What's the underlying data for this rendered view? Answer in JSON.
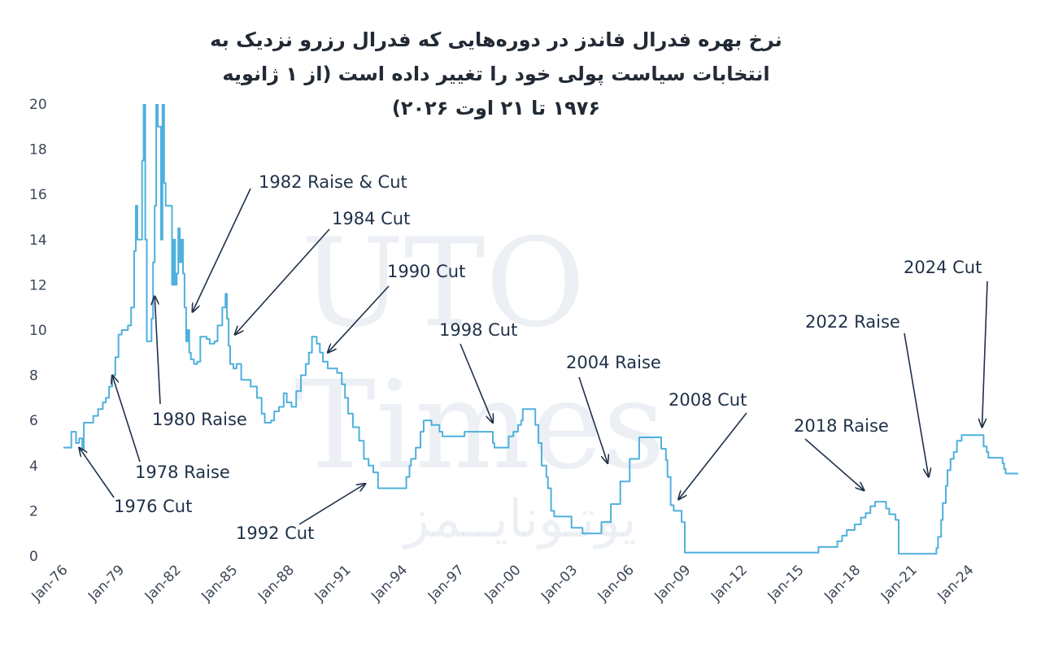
{
  "chart_data": {
    "type": "line",
    "title_lines": [
      "نرخ بهره فدرال فاندز در دوره‌هایی که فدرال رزرو نزدیک به",
      "انتخابات سیاست پولی خود را تغییر داده است (از ۱ ژانویه",
      "۱۹۷۶ تا ۲۱ اوت ۲۰۲۶)"
    ],
    "xlabel": "",
    "ylabel": "",
    "ylim": [
      0,
      20
    ],
    "xlim": [
      "1976-01",
      "2026-08"
    ],
    "grid": false,
    "line_color": "#4fb0dd",
    "text_color": "#1f3148",
    "y_ticks": [
      "0",
      "2",
      "4",
      "6",
      "8",
      "10",
      "12",
      "14",
      "16",
      "18",
      "20"
    ],
    "x_ticks": [
      {
        "label": "Jan-76",
        "x": "1976-01"
      },
      {
        "label": "Jan-79",
        "x": "1979-01"
      },
      {
        "label": "Jan-82",
        "x": "1982-01"
      },
      {
        "label": "Jan-85",
        "x": "1985-01"
      },
      {
        "label": "Jan-88",
        "x": "1988-01"
      },
      {
        "label": "Jan-91",
        "x": "1991-01"
      },
      {
        "label": "Jan-94",
        "x": "1994-01"
      },
      {
        "label": "Jan-97",
        "x": "1997-01"
      },
      {
        "label": "Jan-00",
        "x": "2000-01"
      },
      {
        "label": "Jan-03",
        "x": "2003-01"
      },
      {
        "label": "Jan-06",
        "x": "2006-01"
      },
      {
        "label": "Jan-09",
        "x": "2009-01"
      },
      {
        "label": "Jan-12",
        "x": "2012-01"
      },
      {
        "label": "Jan-15",
        "x": "2015-01"
      },
      {
        "label": "Jan-18",
        "x": "2018-01"
      },
      {
        "label": "Jan-21",
        "x": "2021-01"
      },
      {
        "label": "Jan-24",
        "x": "2024-01"
      }
    ],
    "series": [
      {
        "points": [
          [
            "1976-01",
            4.8
          ],
          [
            "1976-05",
            4.8
          ],
          [
            "1976-06",
            5.5
          ],
          [
            "1976-08",
            5.5
          ],
          [
            "1976-09",
            5.0
          ],
          [
            "1976-11",
            5.2
          ],
          [
            "1977-01",
            4.7
          ],
          [
            "1977-02",
            5.9
          ],
          [
            "1977-06",
            5.9
          ],
          [
            "1977-08",
            6.2
          ],
          [
            "1977-11",
            6.5
          ],
          [
            "1978-02",
            6.8
          ],
          [
            "1978-04",
            7.0
          ],
          [
            "1978-06",
            7.5
          ],
          [
            "1978-08",
            8.0
          ],
          [
            "1978-10",
            8.8
          ],
          [
            "1978-12",
            9.8
          ],
          [
            "1979-02",
            10.0
          ],
          [
            "1979-06",
            10.2
          ],
          [
            "1979-08",
            11.0
          ],
          [
            "1979-10",
            13.5
          ],
          [
            "1979-11",
            15.5
          ],
          [
            "1979-12",
            14.0
          ],
          [
            "1980-01",
            14.0
          ],
          [
            "1980-03",
            17.5
          ],
          [
            "1980-04",
            20.0
          ],
          [
            "1980-05",
            14.0
          ],
          [
            "1980-06",
            9.5
          ],
          [
            "1980-07",
            9.5
          ],
          [
            "1980-09",
            10.5
          ],
          [
            "1980-10",
            13.0
          ],
          [
            "1980-11",
            15.5
          ],
          [
            "1980-12",
            20.0
          ],
          [
            "1981-01",
            19.0
          ],
          [
            "1981-03",
            14.0
          ],
          [
            "1981-04",
            20.0
          ],
          [
            "1981-05",
            16.5
          ],
          [
            "1981-06",
            15.5
          ],
          [
            "1981-09",
            15.5
          ],
          [
            "1981-10",
            12.0
          ],
          [
            "1981-11",
            14.0
          ],
          [
            "1981-12",
            12.0
          ],
          [
            "1982-01",
            12.5
          ],
          [
            "1982-02",
            14.5
          ],
          [
            "1982-03",
            13.0
          ],
          [
            "1982-04",
            14.0
          ],
          [
            "1982-05",
            12.5
          ],
          [
            "1982-06",
            11.0
          ],
          [
            "1982-07",
            9.5
          ],
          [
            "1982-08",
            10.0
          ],
          [
            "1982-09",
            9.0
          ],
          [
            "1982-10",
            8.7
          ],
          [
            "1982-12",
            8.5
          ],
          [
            "1983-02",
            8.6
          ],
          [
            "1983-04",
            9.7
          ],
          [
            "1983-08",
            9.6
          ],
          [
            "1983-10",
            9.4
          ],
          [
            "1984-01",
            9.5
          ],
          [
            "1984-03",
            10.2
          ],
          [
            "1984-06",
            11.0
          ],
          [
            "1984-08",
            11.6
          ],
          [
            "1984-09",
            10.5
          ],
          [
            "1984-10",
            9.3
          ],
          [
            "1984-11",
            8.5
          ],
          [
            "1985-01",
            8.3
          ],
          [
            "1985-03",
            8.5
          ],
          [
            "1985-06",
            7.8
          ],
          [
            "1985-10",
            7.8
          ],
          [
            "1985-12",
            7.5
          ],
          [
            "1986-04",
            7.0
          ],
          [
            "1986-07",
            6.3
          ],
          [
            "1986-09",
            5.9
          ],
          [
            "1987-01",
            6.0
          ],
          [
            "1987-03",
            6.4
          ],
          [
            "1987-06",
            6.6
          ],
          [
            "1987-09",
            7.2
          ],
          [
            "1987-11",
            6.8
          ],
          [
            "1988-02",
            6.6
          ],
          [
            "1988-05",
            7.3
          ],
          [
            "1988-08",
            8.0
          ],
          [
            "1988-11",
            8.5
          ],
          [
            "1989-01",
            9.0
          ],
          [
            "1989-03",
            9.7
          ],
          [
            "1989-06",
            9.4
          ],
          [
            "1989-08",
            9.0
          ],
          [
            "1989-10",
            8.6
          ],
          [
            "1990-01",
            8.3
          ],
          [
            "1990-07",
            8.1
          ],
          [
            "1990-10",
            7.6
          ],
          [
            "1990-12",
            7.0
          ],
          [
            "1991-02",
            6.3
          ],
          [
            "1991-05",
            5.7
          ],
          [
            "1991-09",
            5.1
          ],
          [
            "1991-12",
            4.3
          ],
          [
            "1992-03",
            4.0
          ],
          [
            "1992-06",
            3.7
          ],
          [
            "1992-09",
            3.0
          ],
          [
            "1994-02",
            3.0
          ],
          [
            "1994-03",
            3.5
          ],
          [
            "1994-05",
            4.0
          ],
          [
            "1994-06",
            4.3
          ],
          [
            "1994-09",
            4.8
          ],
          [
            "1994-12",
            5.5
          ],
          [
            "1995-02",
            6.0
          ],
          [
            "1995-07",
            5.8
          ],
          [
            "1995-12",
            5.5
          ],
          [
            "1996-02",
            5.3
          ],
          [
            "1997-03",
            5.3
          ],
          [
            "1997-04",
            5.5
          ],
          [
            "1998-09",
            5.5
          ],
          [
            "1998-10",
            5.0
          ],
          [
            "1998-11",
            4.8
          ],
          [
            "1999-06",
            4.8
          ],
          [
            "1999-08",
            5.3
          ],
          [
            "1999-11",
            5.5
          ],
          [
            "2000-02",
            5.8
          ],
          [
            "2000-04",
            6.0
          ],
          [
            "2000-05",
            6.5
          ],
          [
            "2000-12",
            6.5
          ],
          [
            "2001-01",
            5.8
          ],
          [
            "2001-03",
            5.0
          ],
          [
            "2001-05",
            4.0
          ],
          [
            "2001-08",
            3.5
          ],
          [
            "2001-09",
            3.0
          ],
          [
            "2001-11",
            2.0
          ],
          [
            "2002-01",
            1.75
          ],
          [
            "2002-11",
            1.75
          ],
          [
            "2002-12",
            1.25
          ],
          [
            "2003-06",
            1.25
          ],
          [
            "2003-07",
            1.0
          ],
          [
            "2004-06",
            1.0
          ],
          [
            "2004-07",
            1.5
          ],
          [
            "2005-01",
            2.3
          ],
          [
            "2005-07",
            3.3
          ],
          [
            "2006-01",
            4.3
          ],
          [
            "2006-07",
            5.25
          ],
          [
            "2007-08",
            5.25
          ],
          [
            "2007-09",
            4.75
          ],
          [
            "2007-12",
            4.25
          ],
          [
            "2008-01",
            3.5
          ],
          [
            "2008-03",
            2.25
          ],
          [
            "2008-05",
            2.0
          ],
          [
            "2008-10",
            1.5
          ],
          [
            "2008-12",
            0.15
          ],
          [
            "2015-12",
            0.15
          ],
          [
            "2016-01",
            0.4
          ],
          [
            "2016-12",
            0.4
          ],
          [
            "2017-01",
            0.65
          ],
          [
            "2017-04",
            0.9
          ],
          [
            "2017-07",
            1.15
          ],
          [
            "2017-12",
            1.4
          ],
          [
            "2018-04",
            1.7
          ],
          [
            "2018-07",
            1.9
          ],
          [
            "2018-10",
            2.2
          ],
          [
            "2019-01",
            2.4
          ],
          [
            "2019-07",
            2.4
          ],
          [
            "2019-08",
            2.1
          ],
          [
            "2019-10",
            1.85
          ],
          [
            "2020-02",
            1.6
          ],
          [
            "2020-04",
            0.1
          ],
          [
            "2022-03",
            0.1
          ],
          [
            "2022-04",
            0.35
          ],
          [
            "2022-05",
            0.85
          ],
          [
            "2022-07",
            1.6
          ],
          [
            "2022-08",
            2.35
          ],
          [
            "2022-10",
            3.1
          ],
          [
            "2022-11",
            3.8
          ],
          [
            "2023-01",
            4.3
          ],
          [
            "2023-03",
            4.6
          ],
          [
            "2023-05",
            5.1
          ],
          [
            "2023-08",
            5.35
          ],
          [
            "2024-09",
            5.35
          ],
          [
            "2024-10",
            4.85
          ],
          [
            "2024-12",
            4.6
          ],
          [
            "2025-01",
            4.35
          ],
          [
            "2025-09",
            4.35
          ],
          [
            "2025-10",
            4.1
          ],
          [
            "2025-11",
            3.85
          ],
          [
            "2025-12",
            3.65
          ],
          [
            "2026-08",
            3.65
          ]
        ]
      }
    ],
    "annotations": [
      {
        "text": "1976 Cut",
        "target": [
          "1976-11",
          4.8
        ]
      },
      {
        "text": "1978 Raise",
        "target": [
          "1978-08",
          8.0
        ]
      },
      {
        "text": "1980 Raise",
        "target": [
          "1980-11",
          11.5
        ]
      },
      {
        "text": "1982 Raise & Cut",
        "target": [
          "1982-11",
          10.8
        ]
      },
      {
        "text": "1984 Cut",
        "target": [
          "1985-02",
          9.8
        ]
      },
      {
        "text": "1990 Cut",
        "target": [
          "1990-01",
          9.0
        ]
      },
      {
        "text": "1992 Cut",
        "target": [
          "1992-01",
          3.2
        ]
      },
      {
        "text": "1998 Cut",
        "target": [
          "1998-10",
          5.9
        ]
      },
      {
        "text": "2004 Raise",
        "target": [
          "2004-11",
          4.1
        ]
      },
      {
        "text": "2008 Cut",
        "target": [
          "2008-08",
          2.5
        ]
      },
      {
        "text": "2018 Raise",
        "target": [
          "2018-06",
          2.9
        ]
      },
      {
        "text": "2022 Raise",
        "target": [
          "2021-11",
          3.5
        ]
      },
      {
        "text": "2024 Cut",
        "target": [
          "2024-09",
          5.7
        ]
      }
    ],
    "watermark": [
      "UTO",
      "Times",
      "یوتـونایــمز"
    ]
  }
}
